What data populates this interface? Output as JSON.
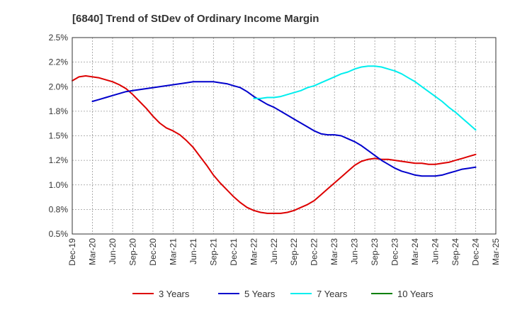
{
  "chart_data": {
    "type": "line",
    "title": "[6840]  Trend of StDev of Ordinary Income Margin",
    "xlabel": "",
    "ylabel": "",
    "ylim": [
      0.5,
      2.5
    ],
    "y_ticks": [
      "2.5%",
      "2.2%",
      "2.0%",
      "1.8%",
      "1.5%",
      "1.2%",
      "1.0%",
      "0.8%",
      "0.5%"
    ],
    "x_ticks": [
      "Dec-19",
      "Mar-20",
      "Jun-20",
      "Sep-20",
      "Dec-20",
      "Mar-21",
      "Jun-21",
      "Sep-21",
      "Dec-21",
      "Mar-22",
      "Jun-22",
      "Sep-22",
      "Dec-22",
      "Mar-23",
      "Jun-23",
      "Sep-23",
      "Dec-23",
      "Mar-24",
      "Jun-24",
      "Sep-24",
      "Dec-24",
      "Mar-25"
    ],
    "grid": true,
    "legend_position": "bottom",
    "series": [
      {
        "name": "3 Years",
        "color": "#dd0000",
        "x": [
          "Dec-19",
          "Jan-20",
          "Feb-20",
          "Mar-20",
          "Apr-20",
          "May-20",
          "Jun-20",
          "Jul-20",
          "Aug-20",
          "Sep-20",
          "Oct-20",
          "Nov-20",
          "Dec-20",
          "Jan-21",
          "Feb-21",
          "Mar-21",
          "Apr-21",
          "May-21",
          "Jun-21",
          "Jul-21",
          "Aug-21",
          "Sep-21",
          "Oct-21",
          "Nov-21",
          "Dec-21",
          "Jan-22",
          "Feb-22",
          "Mar-22",
          "Apr-22",
          "May-22",
          "Jun-22",
          "Jul-22",
          "Aug-22",
          "Sep-22",
          "Oct-22",
          "Nov-22",
          "Dec-22",
          "Jan-23",
          "Feb-23",
          "Mar-23",
          "Apr-23",
          "May-23",
          "Jun-23",
          "Jul-23",
          "Aug-23",
          "Sep-23",
          "Oct-23",
          "Nov-23",
          "Dec-23",
          "Jan-24",
          "Feb-24",
          "Mar-24",
          "Apr-24",
          "May-24",
          "Jun-24",
          "Jul-24",
          "Aug-24",
          "Sep-24",
          "Oct-24",
          "Nov-24",
          "Dec-24"
        ],
        "values": [
          2.06,
          2.1,
          2.11,
          2.1,
          2.09,
          2.07,
          2.05,
          2.02,
          1.98,
          1.92,
          1.85,
          1.78,
          1.7,
          1.63,
          1.58,
          1.55,
          1.51,
          1.45,
          1.38,
          1.29,
          1.2,
          1.1,
          1.02,
          0.95,
          0.88,
          0.82,
          0.77,
          0.74,
          0.72,
          0.71,
          0.71,
          0.71,
          0.72,
          0.74,
          0.77,
          0.8,
          0.84,
          0.9,
          0.96,
          1.02,
          1.08,
          1.14,
          1.2,
          1.24,
          1.26,
          1.27,
          1.26,
          1.26,
          1.25,
          1.24,
          1.23,
          1.22,
          1.22,
          1.21,
          1.21,
          1.22,
          1.23,
          1.25,
          1.27,
          1.29,
          1.31
        ]
      },
      {
        "name": "5 Years",
        "color": "#0000cc",
        "x": [
          "Mar-20",
          "Apr-20",
          "May-20",
          "Jun-20",
          "Jul-20",
          "Aug-20",
          "Sep-20",
          "Oct-20",
          "Nov-20",
          "Dec-20",
          "Jan-21",
          "Feb-21",
          "Mar-21",
          "Apr-21",
          "May-21",
          "Jun-21",
          "Jul-21",
          "Aug-21",
          "Sep-21",
          "Oct-21",
          "Nov-21",
          "Dec-21",
          "Jan-22",
          "Feb-22",
          "Mar-22",
          "Apr-22",
          "May-22",
          "Jun-22",
          "Jul-22",
          "Aug-22",
          "Sep-22",
          "Oct-22",
          "Nov-22",
          "Dec-22",
          "Jan-23",
          "Feb-23",
          "Mar-23",
          "Apr-23",
          "May-23",
          "Jun-23",
          "Jul-23",
          "Aug-23",
          "Sep-23",
          "Oct-23",
          "Nov-23",
          "Dec-23",
          "Jan-24",
          "Feb-24",
          "Mar-24",
          "Apr-24",
          "May-24",
          "Jun-24",
          "Jul-24",
          "Aug-24",
          "Sep-24",
          "Oct-24",
          "Nov-24",
          "Dec-24"
        ],
        "values": [
          1.85,
          1.87,
          1.89,
          1.91,
          1.93,
          1.95,
          1.96,
          1.97,
          1.98,
          1.99,
          2.0,
          2.01,
          2.02,
          2.03,
          2.04,
          2.05,
          2.05,
          2.05,
          2.05,
          2.04,
          2.03,
          2.01,
          1.99,
          1.95,
          1.9,
          1.86,
          1.82,
          1.79,
          1.75,
          1.71,
          1.67,
          1.63,
          1.59,
          1.55,
          1.52,
          1.51,
          1.51,
          1.5,
          1.47,
          1.44,
          1.4,
          1.35,
          1.3,
          1.25,
          1.21,
          1.17,
          1.14,
          1.12,
          1.1,
          1.09,
          1.09,
          1.09,
          1.1,
          1.12,
          1.14,
          1.16,
          1.17,
          1.18
        ]
      },
      {
        "name": "7 Years",
        "color": "#00eeee",
        "x": [
          "Mar-22",
          "Apr-22",
          "May-22",
          "Jun-22",
          "Jul-22",
          "Aug-22",
          "Sep-22",
          "Oct-22",
          "Nov-22",
          "Dec-22",
          "Jan-23",
          "Feb-23",
          "Mar-23",
          "Apr-23",
          "May-23",
          "Jun-23",
          "Jul-23",
          "Aug-23",
          "Sep-23",
          "Oct-23",
          "Nov-23",
          "Dec-23",
          "Jan-24",
          "Feb-24",
          "Mar-24",
          "Apr-24",
          "May-24",
          "Jun-24",
          "Jul-24",
          "Aug-24",
          "Sep-24",
          "Oct-24",
          "Nov-24",
          "Dec-24"
        ],
        "values": [
          1.88,
          1.88,
          1.89,
          1.89,
          1.9,
          1.92,
          1.94,
          1.96,
          1.99,
          2.01,
          2.04,
          2.07,
          2.1,
          2.13,
          2.15,
          2.18,
          2.2,
          2.21,
          2.21,
          2.2,
          2.18,
          2.16,
          2.13,
          2.09,
          2.05,
          2.0,
          1.95,
          1.9,
          1.85,
          1.79,
          1.74,
          1.68,
          1.62,
          1.56
        ]
      },
      {
        "name": "10 Years",
        "color": "#008000",
        "x": [],
        "values": []
      }
    ]
  }
}
